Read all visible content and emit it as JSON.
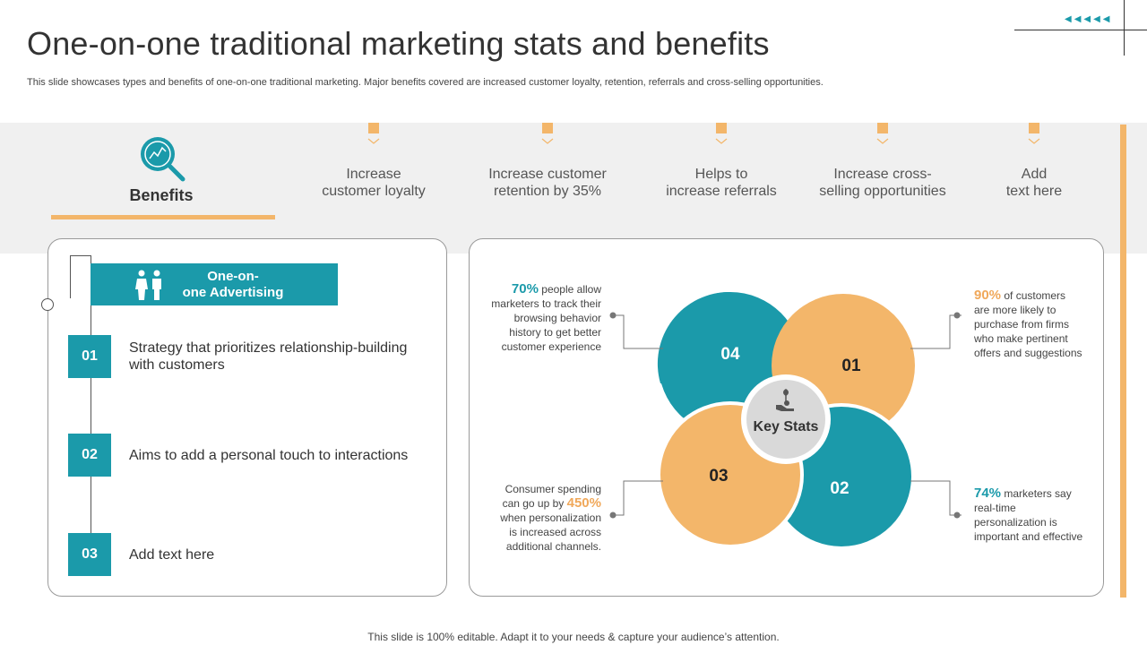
{
  "header": {
    "title": "One-on-one traditional marketing stats and benefits",
    "subtitle": "This slide showcases types and benefits of one-on-one traditional marketing. Major benefits covered are increased customer loyalty, retention, referrals and cross-selling opportunities.",
    "deco_arrows": "◀◀◀◀◀"
  },
  "benefits": {
    "label": "Benefits",
    "items": [
      {
        "line1": "Increase",
        "line2": "customer loyalty"
      },
      {
        "line1": "Increase customer",
        "line2": "retention by 35%"
      },
      {
        "line1": "Helps to",
        "line2": "increase referrals"
      },
      {
        "line1": "Increase cross-",
        "line2": "selling opportunities"
      },
      {
        "line1": "Add",
        "line2": "text here"
      }
    ]
  },
  "advertising": {
    "line1": "One-on-",
    "line2": "one Advertising",
    "steps": [
      {
        "num": "01",
        "line1": "Strategy that prioritizes relationship-building",
        "line2": "with customers"
      },
      {
        "num": "02",
        "line1": "Aims to add a personal touch to interactions",
        "line2": ""
      },
      {
        "num": "03",
        "line1": "Add text here",
        "line2": ""
      }
    ]
  },
  "key_stats": {
    "center_label": "Key Stats",
    "petals": [
      "01",
      "02",
      "03",
      "04"
    ],
    "stats": {
      "s70": {
        "pct": "70%",
        "l1": " people allow",
        "l2": "marketers to track their",
        "l3": "browsing behavior",
        "l4": "history to get better",
        "l5": "customer experience"
      },
      "s90": {
        "pct": "90%",
        "l1": " of customers",
        "l2": "are more likely to",
        "l3": "purchase from firms",
        "l4": "who make pertinent",
        "l5": "offers and suggestions"
      },
      "s450": {
        "l1": "Consumer spending",
        "l2a": "can go up by ",
        "pct": "450%",
        "l3": "when personalization",
        "l4": "is increased across",
        "l5": "additional channels."
      },
      "s74": {
        "pct": "74%",
        "l1": " marketers say",
        "l2": "real-time",
        "l3": "personalization is",
        "l4": "important and effective"
      }
    }
  },
  "colors": {
    "teal": "#1b9aaa",
    "orange": "#f3b66a",
    "band": "#f0f0f0"
  },
  "footer": {
    "text": "This slide is 100% editable. Adapt it to your needs & capture your audience’s attention."
  }
}
